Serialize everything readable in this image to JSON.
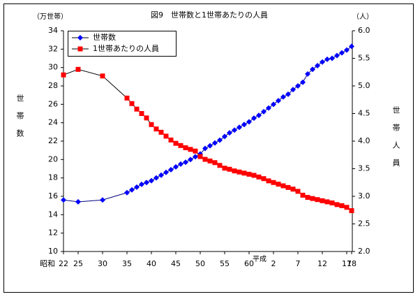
{
  "chart_data": {
    "type": "line",
    "title": "図9　世帯数と1世帯あたりの人員",
    "y_unit": "（万世帯）",
    "y2_unit": "（人）",
    "ylabel": "世帯数",
    "y2label": "世帯人員",
    "era_labels": [
      "昭和",
      "平成"
    ],
    "x": [
      22,
      25,
      30,
      35,
      36,
      37,
      38,
      39,
      40,
      41,
      42,
      43,
      44,
      45,
      46,
      47,
      48,
      49,
      50,
      51,
      52,
      53,
      54,
      55,
      56,
      57,
      58,
      59,
      60,
      61,
      62,
      63,
      64,
      65,
      66,
      67,
      68,
      69,
      70,
      71,
      72,
      73,
      74,
      75,
      76,
      77,
      78,
      79,
      80,
      81
    ],
    "xlim": [
      22,
      81
    ],
    "xticks": [
      22,
      25,
      30,
      35,
      40,
      45,
      50,
      55,
      60,
      {
        "value": 65,
        "label": "2"
      },
      {
        "value": 70,
        "label": "7"
      },
      {
        "value": 75,
        "label": "12"
      },
      {
        "value": 80,
        "label": "17"
      },
      {
        "value": 81,
        "label": "18"
      }
    ],
    "ylim": [
      10,
      34
    ],
    "yticks": [
      10,
      12,
      14,
      16,
      18,
      20,
      22,
      24,
      26,
      28,
      30,
      32,
      34
    ],
    "y2lim": [
      2.0,
      6.0
    ],
    "y2ticks": [
      {
        "value": 2.0,
        "label": "2.0"
      },
      {
        "value": 2.5,
        "label": "2.5"
      },
      {
        "value": 3.0,
        "label": "3.0"
      },
      {
        "value": 3.5,
        "label": "3.5"
      },
      {
        "value": 4.0,
        "label": "4.0"
      },
      {
        "value": 4.5,
        "label": "4.5"
      },
      {
        "value": 5.0,
        "label": "5.0"
      },
      {
        "value": 5.5,
        "label": "5.5"
      },
      {
        "value": 6.0,
        "label": "6.0"
      }
    ],
    "legend": "upper left",
    "series": [
      {
        "name": "世帯数",
        "color": "#0000ff",
        "marker": "diamond",
        "values": [
          15.6,
          15.4,
          15.6,
          16.4,
          16.7,
          17.0,
          17.3,
          17.5,
          17.7,
          18.0,
          18.3,
          18.6,
          18.9,
          19.2,
          19.5,
          19.7,
          20.0,
          20.3,
          20.6,
          21.2,
          21.5,
          21.8,
          22.1,
          22.5,
          22.9,
          23.2,
          23.5,
          23.8,
          24.1,
          24.5,
          24.8,
          25.2,
          25.6,
          26.0,
          26.4,
          26.8,
          27.1,
          27.6,
          28.0,
          28.4,
          29.3,
          29.8,
          30.2,
          30.6,
          30.9,
          31.0,
          31.3,
          31.6,
          31.9,
          32.3
        ]
      },
      {
        "name": "1世帯あたりの人員",
        "color": "#ff0000",
        "marker": "square",
        "axis": "y2",
        "values": [
          5.2,
          5.3,
          5.18,
          4.78,
          4.68,
          4.58,
          4.5,
          4.42,
          4.3,
          4.22,
          4.16,
          4.09,
          4.02,
          3.96,
          3.92,
          3.88,
          3.85,
          3.82,
          3.72,
          3.67,
          3.64,
          3.61,
          3.56,
          3.51,
          3.49,
          3.46,
          3.44,
          3.42,
          3.4,
          3.38,
          3.35,
          3.32,
          3.28,
          3.25,
          3.22,
          3.19,
          3.16,
          3.13,
          3.09,
          3.02,
          2.98,
          2.96,
          2.94,
          2.92,
          2.9,
          2.88,
          2.85,
          2.83,
          2.8,
          2.74
        ]
      }
    ]
  }
}
